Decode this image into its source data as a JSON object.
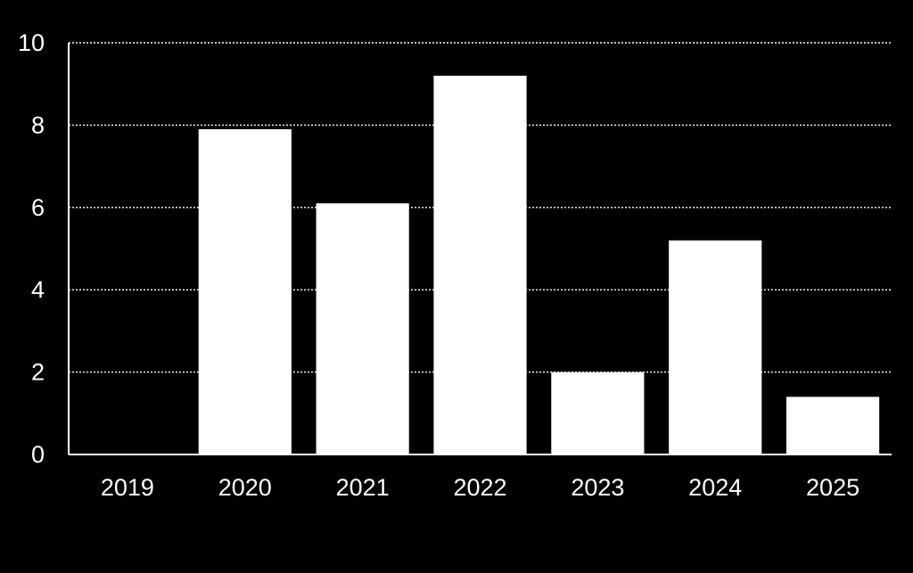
{
  "chart_data": {
    "type": "bar",
    "categories": [
      "2019",
      "2020",
      "2021",
      "2022",
      "2023",
      "2024",
      "2025"
    ],
    "values": [
      0,
      7.9,
      6.1,
      9.2,
      2.0,
      5.2,
      1.4
    ],
    "ylim": [
      0,
      10
    ],
    "yticks": [
      0,
      2,
      4,
      6,
      8,
      10
    ],
    "title": "",
    "xlabel": "",
    "ylabel": "",
    "grid": true,
    "grid_style": "dotted",
    "legend": "none",
    "colors": {
      "background": "#000000",
      "bar": "#ffffff",
      "text": "#ffffff",
      "grid": "#ffffff",
      "axis": "#ffffff"
    }
  }
}
